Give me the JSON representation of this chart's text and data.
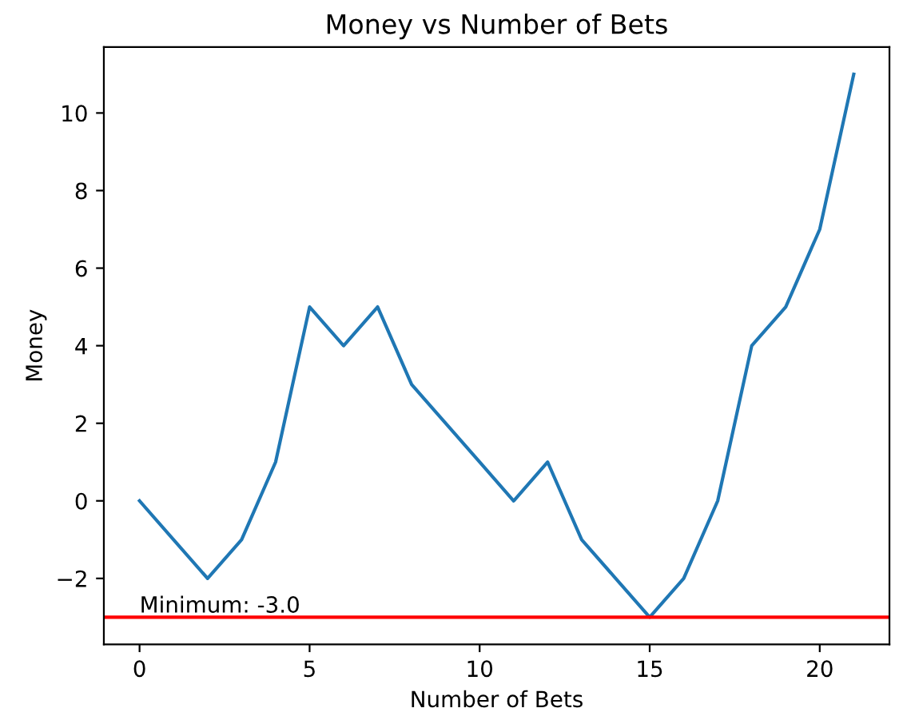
{
  "chart_data": {
    "type": "line",
    "title": "Money vs Number of Bets",
    "xlabel": "Number of Bets",
    "ylabel": "Money",
    "x": [
      0,
      1,
      2,
      3,
      4,
      5,
      6,
      7,
      8,
      9,
      10,
      11,
      12,
      13,
      14,
      15,
      16,
      17,
      18,
      19,
      20,
      21
    ],
    "series": [
      {
        "color": "#1f77b4",
        "values": [
          0,
          -1,
          -2,
          -1,
          1,
          5,
          4,
          5,
          3,
          2,
          1,
          0,
          1,
          -1,
          -2,
          -3,
          -2,
          0,
          4,
          5,
          7,
          11
        ]
      }
    ],
    "xlim": [
      -1.05,
      22.05
    ],
    "ylim": [
      -3.7,
      11.7
    ],
    "xticks": [
      0,
      5,
      10,
      15,
      20
    ],
    "yticks": [
      {
        "value": -2,
        "label": "−2"
      },
      0,
      2,
      4,
      6,
      8,
      10
    ],
    "ref_lines": [
      {
        "axis": "y",
        "value": -3,
        "color": "#ff0000"
      }
    ],
    "annotations": [
      {
        "text": "Minimum: -3.0",
        "x": 0,
        "y": -3
      }
    ],
    "grid": false,
    "legend": false
  }
}
